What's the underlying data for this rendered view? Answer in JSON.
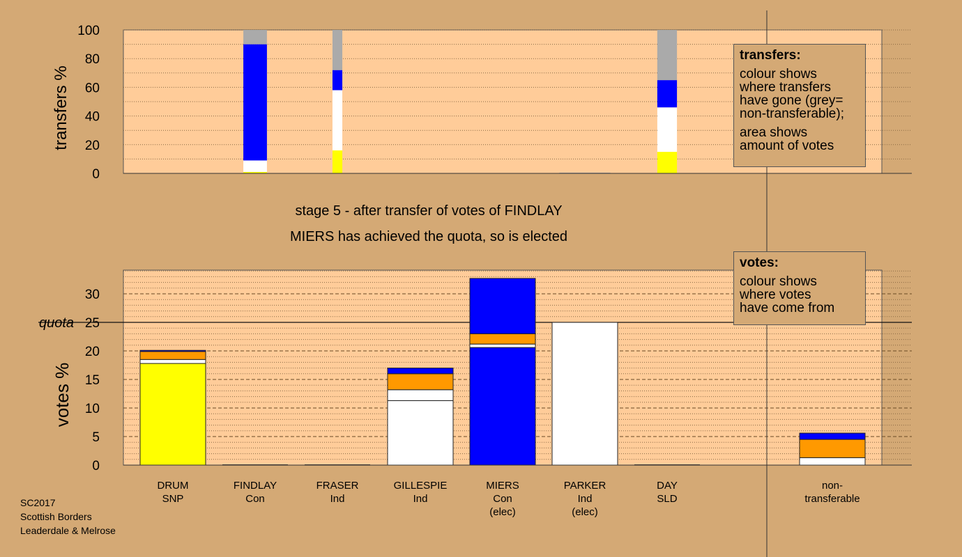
{
  "stage_title": "stage 5 - after transfer of votes of FINDLAY",
  "stage_note": "MIERS has achieved the quota, so is elected",
  "footer": [
    "SC2017",
    "Scottish Borders",
    "Leaderdale & Melrose"
  ],
  "legend_transfers": {
    "title": "transfers:",
    "para1": "colour shows\nwhere transfers\nhave gone (grey=\nnon-transferable);",
    "para2": "area shows\namount of votes"
  },
  "legend_votes": {
    "title": "votes:",
    "para1": "colour shows\nwhere votes\nhave come from"
  },
  "colors": {
    "background": "#d4a975",
    "plot_background": "#ffcc99",
    "SNP": "#ffff00",
    "Con": "#0000ff",
    "Ind": "#ffffff",
    "SLD": "#ff9900",
    "non-transferable": "#aaaaaa"
  },
  "chart_data": [
    {
      "type": "bar",
      "stacked": true,
      "ylabel": "transfers %",
      "ylim": [
        0,
        100
      ],
      "yticks": [
        0,
        20,
        40,
        60,
        80,
        100
      ],
      "grid": true,
      "categories": [
        "DRUM SNP",
        "FINDLAY Con",
        "FRASER Ind",
        "GILLESPIE Ind",
        "MIERS Con (elec)",
        "PARKER Ind (elec)",
        "DAY SLD",
        "non-transferable"
      ],
      "note": "bar width proportional to amount of votes transferred",
      "bars": [
        {
          "category": "FINDLAY Con",
          "width": 0.36,
          "segments": [
            {
              "party": "SNP",
              "value": 1
            },
            {
              "party": "Ind",
              "value": 8
            },
            {
              "party": "Con",
              "value": 81
            },
            {
              "party": "non-transferable",
              "value": 10
            }
          ]
        },
        {
          "category": "FRASER Ind",
          "width": 0.15,
          "segments": [
            {
              "party": "SNP",
              "value": 16
            },
            {
              "party": "Ind",
              "value": 42
            },
            {
              "party": "Con",
              "value": 14
            },
            {
              "party": "non-transferable",
              "value": 28
            }
          ]
        },
        {
          "category": "PARKER Ind (elec)",
          "width": 0.78,
          "segments": [
            {
              "party": "non-transferable",
              "value": 0.5
            }
          ]
        },
        {
          "category": "DAY SLD",
          "width": 0.3,
          "segments": [
            {
              "party": "SNP",
              "value": 15
            },
            {
              "party": "Ind",
              "value": 31
            },
            {
              "party": "Con",
              "value": 19
            },
            {
              "party": "non-transferable",
              "value": 35
            }
          ]
        }
      ]
    },
    {
      "type": "bar",
      "stacked": true,
      "ylabel": "votes %",
      "ylim": [
        0,
        35
      ],
      "yticks": [
        0,
        5,
        10,
        15,
        20,
        25,
        30
      ],
      "quota": 25,
      "quota_label": "quota",
      "grid": true,
      "categories": [
        {
          "name": "DRUM",
          "party": "SNP",
          "note": ""
        },
        {
          "name": "FINDLAY",
          "party": "Con",
          "note": ""
        },
        {
          "name": "FRASER",
          "party": "Ind",
          "note": ""
        },
        {
          "name": "GILLESPIE",
          "party": "Ind",
          "note": ""
        },
        {
          "name": "MIERS",
          "party": "Con",
          "note": "(elec)"
        },
        {
          "name": "PARKER",
          "party": "Ind",
          "note": "(elec)"
        },
        {
          "name": "DAY",
          "party": "SLD",
          "note": ""
        },
        {
          "name": "non-",
          "party": "transferable",
          "note": ""
        }
      ],
      "stacks": [
        [
          {
            "party": "SNP",
            "value": 17.8
          },
          {
            "party": "Ind",
            "value": 0.7
          },
          {
            "party": "SLD",
            "value": 1.4
          },
          {
            "party": "Con",
            "value": 0.2
          }
        ],
        [],
        [],
        [
          {
            "party": "Ind",
            "value": 11.3
          },
          {
            "party": "Ind",
            "value": 1.9
          },
          {
            "party": "SLD",
            "value": 2.8
          },
          {
            "party": "Con",
            "value": 1.0
          }
        ],
        [
          {
            "party": "Con",
            "value": 20.6
          },
          {
            "party": "Ind",
            "value": 0.6
          },
          {
            "party": "SLD",
            "value": 1.8
          },
          {
            "party": "Con",
            "value": 9.7
          }
        ],
        [
          {
            "party": "Ind",
            "value": 25.0
          }
        ],
        [],
        [
          {
            "party": "Ind",
            "value": 1.3
          },
          {
            "party": "SLD",
            "value": 3.2
          },
          {
            "party": "Con",
            "value": 1.1
          }
        ]
      ]
    }
  ]
}
